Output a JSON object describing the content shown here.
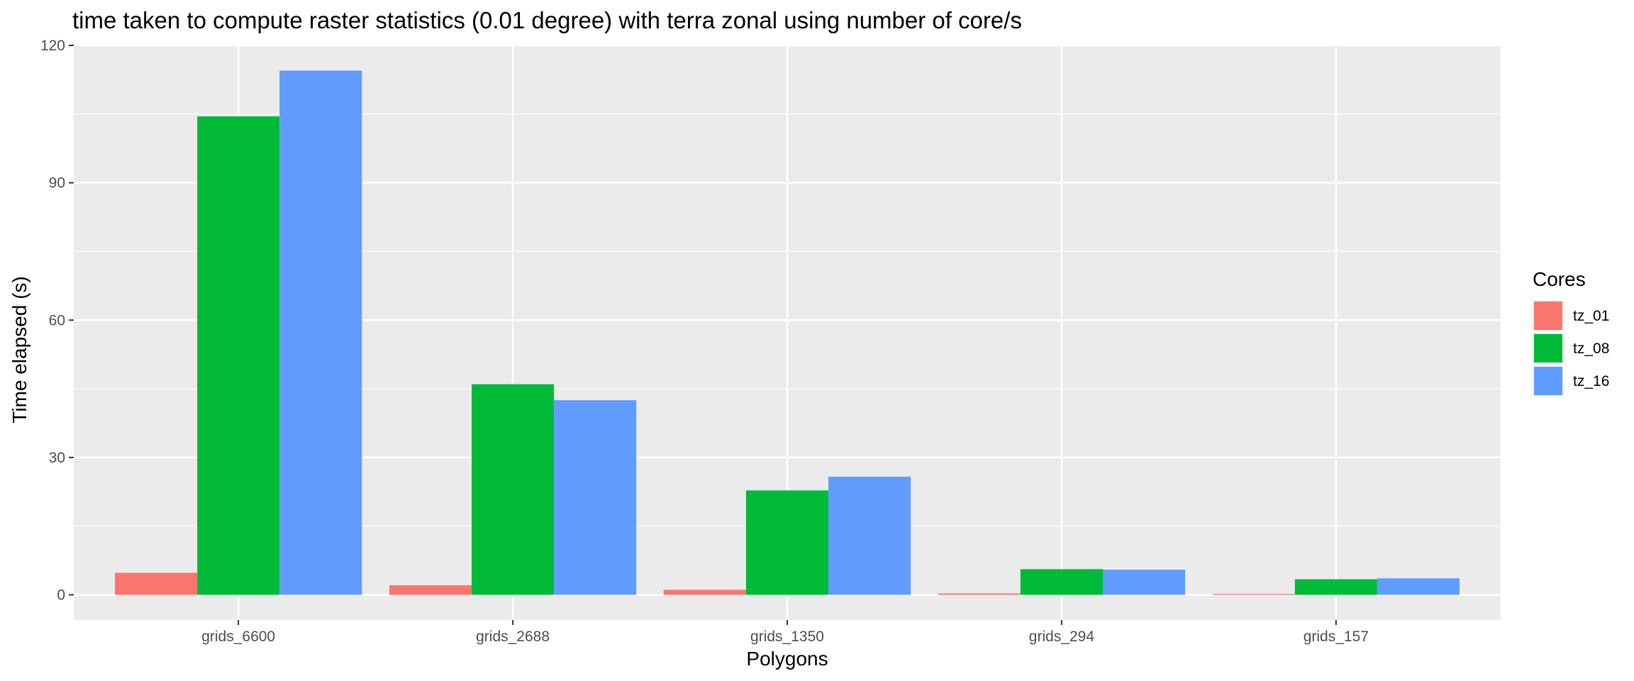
{
  "chart_data": {
    "type": "bar",
    "title": "time taken to compute raster statistics (0.01 degree) with terra zonal using number of core/s",
    "xlabel": "Polygons",
    "ylabel": "Time elapsed (s)",
    "categories": [
      "grids_6600",
      "grids_2688",
      "grids_1350",
      "grids_294",
      "grids_157"
    ],
    "ylim": [
      -5.5,
      120
    ],
    "yticks": [
      0,
      30,
      60,
      90,
      120
    ],
    "grid": true,
    "legend": {
      "title": "Cores",
      "position": "right"
    },
    "series": [
      {
        "name": "tz_01",
        "color": "#F8766D",
        "values": [
          4.8,
          2.1,
          1.1,
          0.3,
          0.2
        ]
      },
      {
        "name": "tz_08",
        "color": "#00BA38",
        "values": [
          104.5,
          46.0,
          22.8,
          5.6,
          3.4
        ]
      },
      {
        "name": "tz_16",
        "color": "#619CFF",
        "values": [
          114.5,
          42.5,
          25.8,
          5.5,
          3.6
        ]
      }
    ],
    "panel_background": "#EBEBEB",
    "grid_color": "#FFFFFF"
  }
}
